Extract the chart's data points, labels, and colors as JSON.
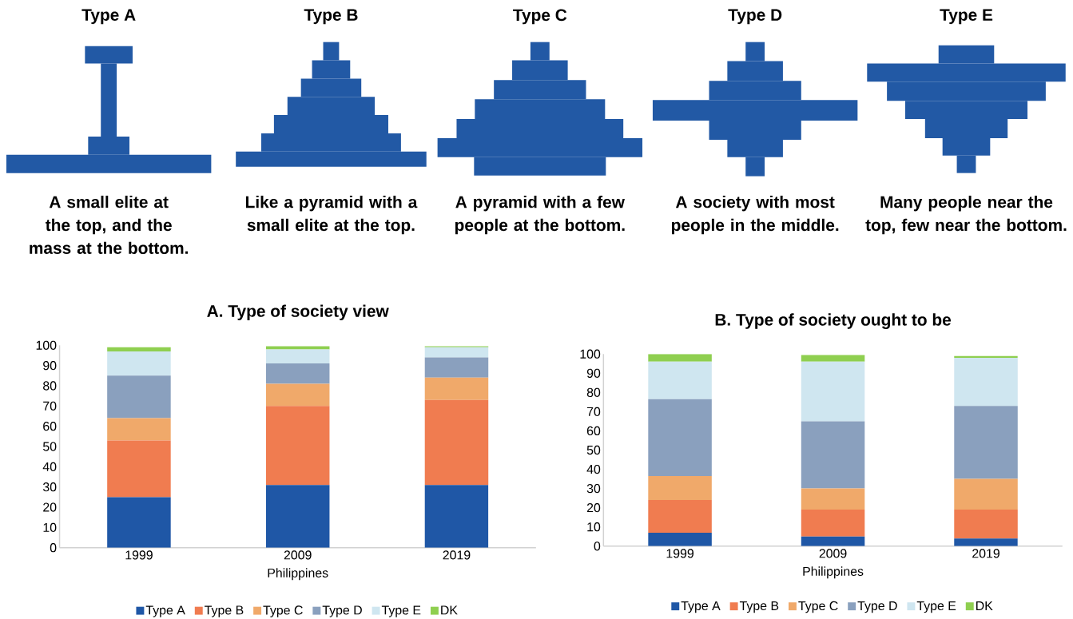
{
  "chart_data": [
    {
      "type": "other",
      "annotations": [
        "Type A",
        "Type B",
        "Type C",
        "Type D",
        "Type E",
        "A small elite at the top, and the mass at the bottom.",
        "Like a pyramid with a small elite at the top.",
        "A pyramid with a few people at the bottom.",
        "A society with most people in the middle.",
        "Many people near the top, few near the bottom."
      ]
    },
    {
      "type": "bar",
      "title": "A. Type of society view",
      "xlabel": "Philippines",
      "categories": [
        "1999",
        "2009",
        "2019"
      ],
      "stacked": true,
      "ylim": [
        0,
        100
      ],
      "yticks": [
        0,
        10,
        20,
        30,
        40,
        50,
        60,
        70,
        80,
        90,
        100
      ],
      "legend": "bottom",
      "series": [
        {
          "name": "Type A",
          "color": "#1f57a6",
          "values": [
            25,
            31,
            31
          ]
        },
        {
          "name": "Type B",
          "color": "#f07c50",
          "values": [
            28,
            39,
            42
          ]
        },
        {
          "name": "Type C",
          "color": "#f0a96a",
          "values": [
            11,
            11,
            11
          ]
        },
        {
          "name": "Type D",
          "color": "#8aa0be",
          "values": [
            21,
            10,
            10
          ]
        },
        {
          "name": "Type E",
          "color": "#cfe6f0",
          "values": [
            12,
            7,
            5
          ]
        },
        {
          "name": "DK",
          "color": "#8fcf50",
          "values": [
            2,
            1.5,
            0.5
          ]
        }
      ]
    },
    {
      "type": "bar",
      "title": "B. Type of society ought to be",
      "xlabel": "Philippines",
      "categories": [
        "1999",
        "2009",
        "2019"
      ],
      "stacked": true,
      "ylim": [
        0,
        100
      ],
      "yticks": [
        0,
        10,
        20,
        30,
        40,
        50,
        60,
        70,
        80,
        90,
        100
      ],
      "legend": "bottom",
      "series": [
        {
          "name": "Type A",
          "color": "#1f57a6",
          "values": [
            7,
            5,
            4
          ]
        },
        {
          "name": "Type B",
          "color": "#f07c50",
          "values": [
            17,
            14,
            15
          ]
        },
        {
          "name": "Type C",
          "color": "#f0a96a",
          "values": [
            12.5,
            11,
            16
          ]
        },
        {
          "name": "Type D",
          "color": "#8aa0be",
          "values": [
            40,
            35,
            38
          ]
        },
        {
          "name": "Type E",
          "color": "#cfe6f0",
          "values": [
            19.5,
            31,
            25
          ]
        },
        {
          "name": "DK",
          "color": "#8fcf50",
          "values": [
            4,
            3.5,
            1
          ]
        }
      ]
    }
  ]
}
